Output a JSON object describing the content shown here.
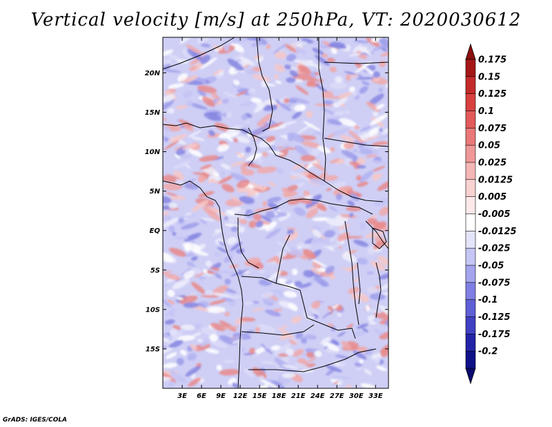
{
  "title": "Vertical velocity [m/s] at 250hPa, VT: 2020030612",
  "credit": "GrADS: IGES/COLA",
  "y_ticks": [
    "20N",
    "15N",
    "10N",
    "5N",
    "EQ",
    "5S",
    "10S",
    "15S"
  ],
  "x_ticks": [
    "3E",
    "6E",
    "9E",
    "12E",
    "15E",
    "18E",
    "21E",
    "24E",
    "27E",
    "30E",
    "33E"
  ],
  "colorbar": {
    "labels": [
      "0.175",
      "0.15",
      "0.125",
      "0.1",
      "0.075",
      "0.05",
      "0.025",
      "0.0125",
      "0.005",
      "-0.005",
      "-0.0125",
      "-0.025",
      "-0.05",
      "-0.075",
      "-0.1",
      "-0.125",
      "-0.175",
      "-0.2"
    ],
    "colors": [
      "#a51717",
      "#c42a2a",
      "#d94040",
      "#e35a5a",
      "#ea7878",
      "#f09898",
      "#f5b6b6",
      "#f9d2d2",
      "#fde9e9",
      "#ffffff",
      "#e4e4fb",
      "#c6c6f6",
      "#a4a4ee",
      "#8080e4",
      "#5f5fd6",
      "#4040c4",
      "#2323a8",
      "#101088"
    ],
    "top_color": "#8c0f0f",
    "bottom_color": "#0a0a6e"
  },
  "map": {
    "lon_range": [
      0,
      35
    ],
    "lat_range": [
      -20,
      24.5
    ],
    "field_colors": [
      "#dcdcf8",
      "#c4c4f4",
      "#b0b0f0",
      "#9c9cea",
      "#8686e2",
      "#f6c8c8",
      "#f0a8a8",
      "#e88a8a",
      "#ffffff",
      "#eeeefc"
    ]
  }
}
